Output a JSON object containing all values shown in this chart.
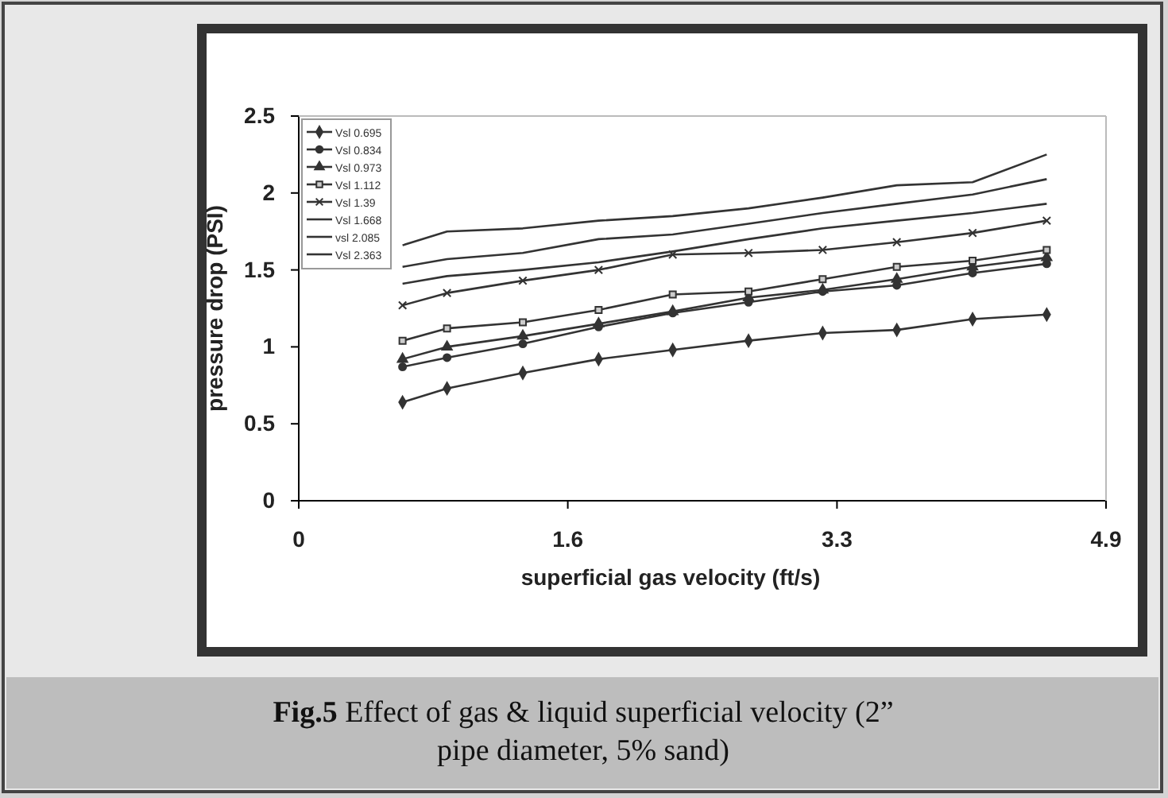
{
  "chart_data": {
    "type": "line",
    "title": "Fig.5 Effect of gas & liquid superficial velocity (2” pipe diameter, 5% sand)",
    "xlabel": "superficial gas velocity (ft/s)",
    "ylabel": "pressure drop (PSI)",
    "x": [
      0.63,
      0.9,
      1.36,
      1.82,
      2.27,
      2.73,
      3.18,
      3.63,
      4.09,
      4.54
    ],
    "xlim": [
      0,
      4.9
    ],
    "xticks": [
      0,
      {
        "value": 1.633,
        "label": "1.6"
      },
      {
        "value": 3.267,
        "label": "3.3"
      },
      4.9
    ],
    "ylim": [
      0,
      2.5
    ],
    "yticks": [
      0,
      0.5,
      1,
      1.5,
      2,
      2.5
    ],
    "grid": false,
    "legend": "top left",
    "series": [
      {
        "name": "Vsl 0.695",
        "color": "#333333",
        "marker": "diamond",
        "values": [
          0.64,
          0.73,
          0.83,
          0.92,
          0.98,
          1.04,
          1.09,
          1.11,
          1.18,
          1.21
        ]
      },
      {
        "name": "Vsl 0.834",
        "color": "#333333",
        "marker": "circle",
        "values": [
          0.87,
          0.93,
          1.02,
          1.13,
          1.22,
          1.29,
          1.36,
          1.4,
          1.48,
          1.54
        ]
      },
      {
        "name": "Vsl 0.973",
        "color": "#333333",
        "marker": "triangle",
        "values": [
          0.92,
          1.0,
          1.07,
          1.15,
          1.23,
          1.32,
          1.37,
          1.44,
          1.52,
          1.58
        ]
      },
      {
        "name": "Vsl 1.112",
        "color": "#333333",
        "marker": "square",
        "values": [
          1.04,
          1.12,
          1.16,
          1.24,
          1.34,
          1.36,
          1.44,
          1.52,
          1.56,
          1.63
        ]
      },
      {
        "name": "Vsl 1.39",
        "color": "#333333",
        "marker": "cross",
        "values": [
          1.27,
          1.35,
          1.43,
          1.5,
          1.6,
          1.61,
          1.63,
          1.68,
          1.74,
          1.82
        ]
      },
      {
        "name": "Vsl 1.668",
        "color": "#333333",
        "marker": "none",
        "values": [
          1.41,
          1.46,
          1.5,
          1.55,
          1.62,
          1.7,
          1.77,
          1.82,
          1.87,
          1.93
        ]
      },
      {
        "name": "vsl 2.085",
        "color": "#333333",
        "marker": "none",
        "values": [
          1.52,
          1.57,
          1.61,
          1.7,
          1.73,
          1.8,
          1.87,
          1.93,
          1.99,
          2.09
        ]
      },
      {
        "name": "Vsl 2.363",
        "color": "#333333",
        "marker": "none",
        "values": [
          1.66,
          1.75,
          1.77,
          1.82,
          1.85,
          1.9,
          1.97,
          2.05,
          2.07,
          2.25
        ]
      }
    ]
  }
}
